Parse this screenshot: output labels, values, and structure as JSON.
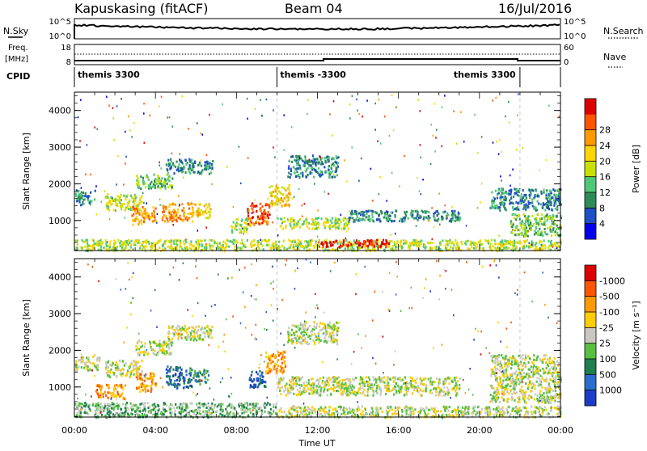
{
  "header": {
    "station": "Kapuskasing (fitACF)",
    "beam": "Beam 04",
    "date": "16/Jul/2016"
  },
  "top_panels": {
    "nsky_label": "N.Sky",
    "nsearch_label": "N.Search",
    "freq_label_1": "Freq.",
    "freq_label_2": "[MHz]",
    "nave_label": "Nave",
    "cpid_label": "CPID",
    "noise_left_ticks": [
      "10^5",
      "10^0"
    ],
    "noise_right_ticks": [
      "10^5",
      "10^0"
    ],
    "freq_left_ticks": [
      "18",
      "8"
    ],
    "freq_right_ticks": [
      "60",
      "0"
    ],
    "cpid_segments": [
      {
        "label": "themis 3300",
        "start": 0,
        "end": 10
      },
      {
        "label": "themis -3300",
        "start": 10,
        "end": 22
      },
      {
        "label": "themis 3300",
        "start": 22,
        "end": 24
      }
    ]
  },
  "chart_data": [
    {
      "type": "heatmap",
      "name": "power",
      "ylabel": "Slant Range [km]",
      "xlabel": "Time UT",
      "xlim": [
        0,
        24
      ],
      "ylim": [
        180,
        4500
      ],
      "x_ticks": [
        "00:00",
        "04:00",
        "08:00",
        "12:00",
        "16:00",
        "20:00",
        "00:00"
      ],
      "y_ticks": [
        1000,
        2000,
        3000,
        4000
      ],
      "colorbar_label": "Power [dB]",
      "colorbar_ticks": [
        "4",
        "8",
        "12",
        "16",
        "20",
        "24",
        "28"
      ],
      "colorbar_colors": [
        "#0000ee",
        "#1f4fc4",
        "#2e8b57",
        "#50c878",
        "#c8e000",
        "#ffd400",
        "#ff9900",
        "#ff5500",
        "#dd0000"
      ],
      "regions": [
        {
          "t0": 0.0,
          "t1": 1.0,
          "r0": 1450,
          "r1": 1850,
          "level": 2
        },
        {
          "t0": 1.5,
          "t1": 3.3,
          "r0": 1300,
          "r1": 1750,
          "level": 4
        },
        {
          "t0": 3.0,
          "t1": 4.8,
          "r0": 1900,
          "r1": 2300,
          "level": 3
        },
        {
          "t0": 4.5,
          "t1": 6.8,
          "r0": 2300,
          "r1": 2700,
          "level": 2
        },
        {
          "t0": 2.8,
          "t1": 4.0,
          "r0": 900,
          "r1": 1400,
          "level": 6
        },
        {
          "t0": 4.3,
          "t1": 5.8,
          "r0": 1000,
          "r1": 1500,
          "level": 6
        },
        {
          "t0": 5.8,
          "t1": 6.7,
          "r0": 1100,
          "r1": 1500,
          "level": 5
        },
        {
          "t0": 7.7,
          "t1": 8.7,
          "r0": 700,
          "r1": 1100,
          "level": 4
        },
        {
          "t0": 8.5,
          "t1": 9.6,
          "r0": 900,
          "r1": 1500,
          "level": 7
        },
        {
          "t0": 9.6,
          "t1": 10.6,
          "r0": 1400,
          "r1": 2000,
          "level": 5
        },
        {
          "t0": 10.0,
          "t1": 13.5,
          "r0": 800,
          "r1": 1100,
          "level": 4
        },
        {
          "t0": 13.5,
          "t1": 19.0,
          "r0": 1000,
          "r1": 1300,
          "level": 2
        },
        {
          "t0": 10.5,
          "t1": 13.0,
          "r0": 2200,
          "r1": 2800,
          "level": 2
        },
        {
          "t0": 0.0,
          "t1": 24.0,
          "r0": 200,
          "r1": 500,
          "level": 4
        },
        {
          "t0": 12.0,
          "t1": 15.5,
          "r0": 300,
          "r1": 500,
          "level": 8
        },
        {
          "t0": 20.5,
          "t1": 24.0,
          "r0": 1300,
          "r1": 1900,
          "level": 2
        },
        {
          "t0": 21.5,
          "t1": 24.0,
          "r0": 600,
          "r1": 1200,
          "level": 3
        }
      ]
    },
    {
      "type": "heatmap",
      "name": "velocity",
      "ylabel": "Slant Range [km]",
      "xlabel": "Time UT",
      "xlim": [
        0,
        24
      ],
      "ylim": [
        180,
        4500
      ],
      "x_ticks": [
        "00:00",
        "04:00",
        "08:00",
        "12:00",
        "16:00",
        "20:00",
        "00:00"
      ],
      "y_ticks": [
        1000,
        2000,
        3000,
        4000
      ],
      "colorbar_label": "Velocity [m s⁻¹]",
      "colorbar_ticks": [
        "1000",
        "500",
        "100",
        "25",
        "-25",
        "-100",
        "-500",
        "-1000"
      ],
      "colorbar_colors": [
        "#1a3cc8",
        "#2a6fd0",
        "#1e7f4f",
        "#56c040",
        "#c8c8c0",
        "#ffcc00",
        "#ff9900",
        "#ff5500",
        "#dd0000"
      ],
      "regions": [
        {
          "t0": 0.0,
          "t1": 1.2,
          "r0": 1450,
          "r1": 1850,
          "level": 4
        },
        {
          "t0": 1.0,
          "t1": 2.5,
          "r0": 700,
          "r1": 1100,
          "level": 6
        },
        {
          "t0": 1.5,
          "t1": 3.3,
          "r0": 1300,
          "r1": 1750,
          "level": 4
        },
        {
          "t0": 3.0,
          "t1": 4.8,
          "r0": 1900,
          "r1": 2300,
          "level": 4
        },
        {
          "t0": 4.5,
          "t1": 6.8,
          "r0": 2300,
          "r1": 2700,
          "level": 4
        },
        {
          "t0": 3.0,
          "t1": 4.0,
          "r0": 900,
          "r1": 1400,
          "level": 6
        },
        {
          "t0": 4.5,
          "t1": 5.8,
          "r0": 1000,
          "r1": 1600,
          "level": 1
        },
        {
          "t0": 5.8,
          "t1": 6.6,
          "r0": 1100,
          "r1": 1500,
          "level": 2
        },
        {
          "t0": 8.6,
          "t1": 9.4,
          "r0": 1000,
          "r1": 1500,
          "level": 1
        },
        {
          "t0": 9.4,
          "t1": 10.4,
          "r0": 1400,
          "r1": 2000,
          "level": 6
        },
        {
          "t0": 10.0,
          "t1": 19.0,
          "r0": 800,
          "r1": 1300,
          "level": 4
        },
        {
          "t0": 10.5,
          "t1": 13.0,
          "r0": 2200,
          "r1": 2800,
          "level": 4
        },
        {
          "t0": 0.0,
          "t1": 10.0,
          "r0": 200,
          "r1": 600,
          "level": 3
        },
        {
          "t0": 10.0,
          "t1": 24.0,
          "r0": 200,
          "r1": 500,
          "level": 4
        },
        {
          "t0": 20.5,
          "t1": 24.0,
          "r0": 600,
          "r1": 1900,
          "level": 4
        }
      ]
    }
  ]
}
